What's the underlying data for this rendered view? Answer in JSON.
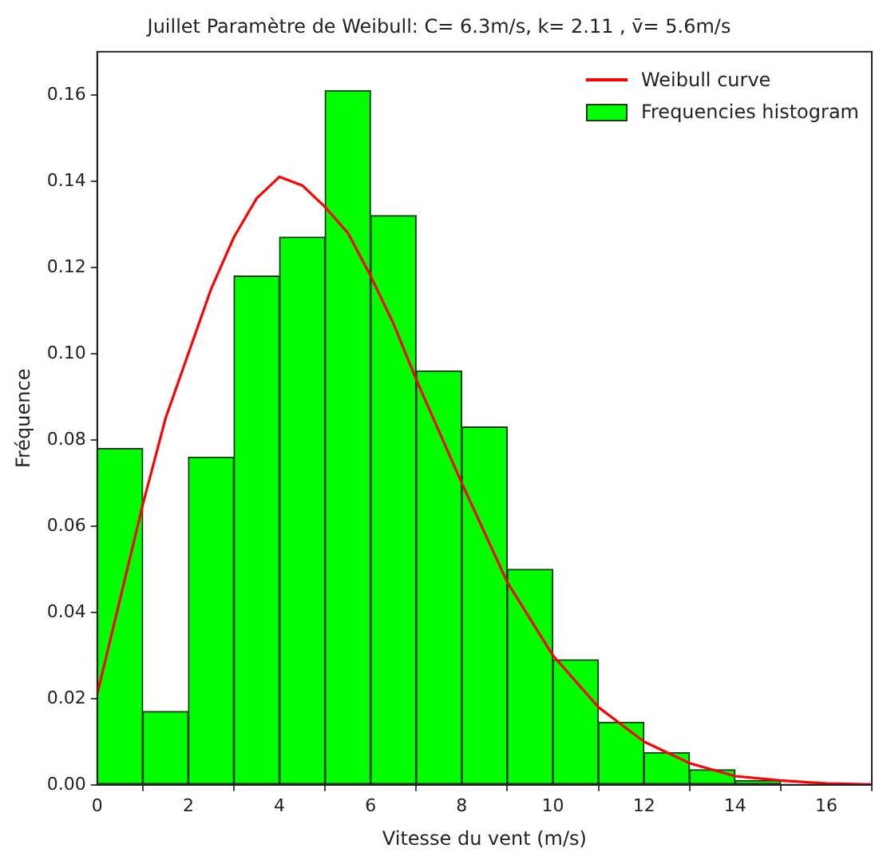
{
  "chart_data": {
    "type": "histogram",
    "title": "Juillet Paramètre de Weibull: C= 6.3m/s, k= 2.11 , v̄= 5.6m/s",
    "xlabel": "Vitesse du vent (m/s)",
    "ylabel": "Fréquence",
    "xlim": [
      0,
      17
    ],
    "xticks": [
      0,
      2,
      4,
      6,
      8,
      10,
      12,
      14,
      16
    ],
    "ylim": [
      0,
      0.17
    ],
    "yticks": [
      {
        "value": 0,
        "label": "0.00"
      },
      {
        "value": 0.02,
        "label": "0.02"
      },
      {
        "value": 0.04,
        "label": "0.04"
      },
      {
        "value": 0.06,
        "label": "0.06"
      },
      {
        "value": 0.08,
        "label": "0.08"
      },
      {
        "value": 0.1,
        "label": "0.10"
      },
      {
        "value": 0.12,
        "label": "0.12"
      },
      {
        "value": 0.14,
        "label": "0.14"
      },
      {
        "value": 0.16,
        "label": "0.16"
      }
    ],
    "grid": false,
    "legend": "top right",
    "marker": "none",
    "series": [
      {
        "type": "line",
        "name": "Weibull curve",
        "color": "#ff0000",
        "line_style": "solid",
        "x": [
          0,
          0.5,
          1,
          1.5,
          2,
          2.5,
          3,
          3.5,
          4,
          4.5,
          5,
          5.5,
          6,
          6.5,
          7,
          8,
          9,
          10,
          11,
          12,
          13,
          14,
          15,
          16,
          17
        ],
        "values": [
          0.021,
          0.043,
          0.065,
          0.085,
          0.1,
          0.115,
          0.127,
          0.136,
          0.141,
          0.139,
          0.134,
          0.128,
          0.118,
          0.107,
          0.094,
          0.07,
          0.047,
          0.03,
          0.018,
          0.01,
          0.005,
          0.002,
          0.001,
          0.0003,
          0.0001
        ]
      },
      {
        "name": "Frequencies histogram",
        "color": "#00ff00",
        "bins": [
          0,
          1,
          2,
          3,
          4,
          5,
          6,
          7,
          8,
          9,
          10,
          11,
          12,
          13,
          14,
          15,
          16
        ],
        "values": [
          0.078,
          0.017,
          0.076,
          0.118,
          0.127,
          0.161,
          0.132,
          0.096,
          0.083,
          0.05,
          0.029,
          0.0145,
          0.0075,
          0.0035,
          0.001,
          null
        ]
      }
    ]
  }
}
